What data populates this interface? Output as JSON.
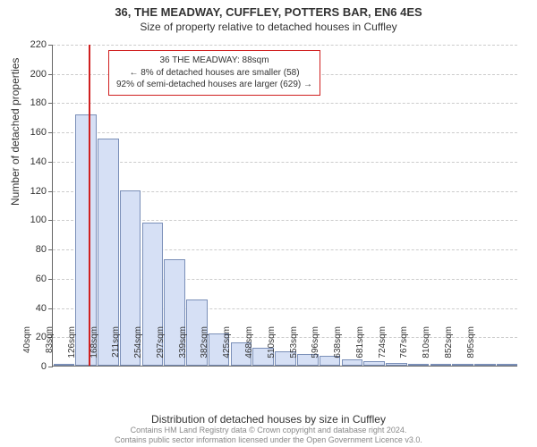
{
  "header": {
    "title": "36, THE MEADWAY, CUFFLEY, POTTERS BAR, EN6 4ES",
    "subtitle": "Size of property relative to detached houses in Cuffley"
  },
  "chart": {
    "type": "histogram",
    "ylabel": "Number of detached properties",
    "xlabel": "Distribution of detached houses by size in Cuffley",
    "ylim": [
      0,
      220
    ],
    "ytick_step": 20,
    "y_ticks": [
      0,
      20,
      40,
      60,
      80,
      100,
      120,
      140,
      160,
      180,
      200,
      220
    ],
    "x_labels": [
      "40sqm",
      "83sqm",
      "126sqm",
      "168sqm",
      "211sqm",
      "254sqm",
      "297sqm",
      "339sqm",
      "382sqm",
      "425sqm",
      "468sqm",
      "510sqm",
      "553sqm",
      "596sqm",
      "638sqm",
      "681sqm",
      "724sqm",
      "767sqm",
      "810sqm",
      "852sqm",
      "895sqm"
    ],
    "values": [
      0,
      172,
      155,
      120,
      98,
      73,
      45,
      22,
      16,
      12,
      10,
      8,
      7,
      4,
      3,
      2,
      1,
      1,
      0,
      0,
      1
    ],
    "bar_fill": "#d6e0f5",
    "bar_border": "#7a8fb8",
    "background": "#ffffff",
    "grid_color": "#cccccc",
    "axis_color": "#666666",
    "marker": {
      "position_category_index": 1.1,
      "color": "#d02020",
      "box_lines": [
        "36 THE MEADWAY: 88sqm",
        "← 8% of detached houses are smaller (58)",
        "92% of semi-detached houses are larger (629) →"
      ]
    }
  },
  "footer": {
    "line1": "Contains HM Land Registry data © Crown copyright and database right 2024.",
    "line2": "Contains public sector information licensed under the Open Government Licence v3.0."
  }
}
